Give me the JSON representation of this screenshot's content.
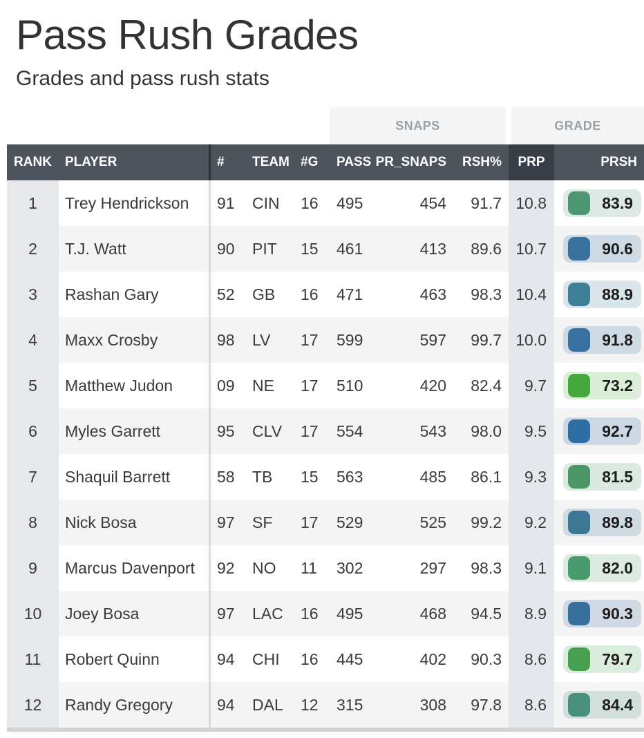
{
  "header": {
    "title": "Pass Rush Grades",
    "subtitle": "Grades and pass rush stats"
  },
  "table": {
    "group_headers": {
      "snaps": "SNAPS",
      "grade": "GRADE"
    },
    "columns": [
      "RANK",
      "PLAYER",
      "#",
      "TEAM",
      "#G",
      "PASS",
      "PR_SNAPS",
      "RSH%",
      "PRP",
      "PRSH"
    ],
    "sorted_column": "PRP",
    "colors": {
      "header_bg": "#4d545c",
      "header_sorted_bg": "#383e45",
      "header_text": "#ffffff",
      "group_label": "#9ba1a8",
      "group_bg": "#f4f4f5",
      "rank_col_bg": "#e6e8eb",
      "prp_col_bg": "#e4e7eb",
      "stripe_bg": "#f4f4f5",
      "divider_header": "#2b2f34",
      "divider_body": "#d9dadb",
      "bottom_bar": "#d2d3d5"
    },
    "rows": [
      {
        "rank": "1",
        "player": "Trey Hendrickson",
        "jersey": "91",
        "team": "CIN",
        "games": "16",
        "pass": "495",
        "pr_snaps": "454",
        "rsh_pct": "91.7",
        "prp": "10.8",
        "prsh": "83.9",
        "grade_color": "#4e9674"
      },
      {
        "rank": "2",
        "player": "T.J. Watt",
        "jersey": "90",
        "team": "PIT",
        "games": "15",
        "pass": "461",
        "pr_snaps": "413",
        "rsh_pct": "89.6",
        "prp": "10.7",
        "prsh": "90.6",
        "grade_color": "#38719c"
      },
      {
        "rank": "3",
        "player": "Rashan Gary",
        "jersey": "52",
        "team": "GB",
        "games": "16",
        "pass": "471",
        "pr_snaps": "463",
        "rsh_pct": "98.3",
        "prp": "10.4",
        "prsh": "88.9",
        "grade_color": "#3f7e97"
      },
      {
        "rank": "4",
        "player": "Maxx Crosby",
        "jersey": "98",
        "team": "LV",
        "games": "17",
        "pass": "599",
        "pr_snaps": "597",
        "rsh_pct": "99.7",
        "prp": "10.0",
        "prsh": "91.8",
        "grade_color": "#38719f"
      },
      {
        "rank": "5",
        "player": "Matthew Judon",
        "jersey": "09",
        "team": "NE",
        "games": "17",
        "pass": "510",
        "pr_snaps": "420",
        "rsh_pct": "82.4",
        "prp": "9.7",
        "prsh": "73.2",
        "grade_color": "#44a83e"
      },
      {
        "rank": "6",
        "player": "Myles Garrett",
        "jersey": "95",
        "team": "CLV",
        "games": "17",
        "pass": "554",
        "pr_snaps": "543",
        "rsh_pct": "98.0",
        "prp": "9.5",
        "prsh": "92.7",
        "grade_color": "#2f6da5"
      },
      {
        "rank": "7",
        "player": "Shaquil Barrett",
        "jersey": "58",
        "team": "TB",
        "games": "15",
        "pass": "563",
        "pr_snaps": "485",
        "rsh_pct": "86.1",
        "prp": "9.3",
        "prsh": "81.5",
        "grade_color": "#4b9566"
      },
      {
        "rank": "8",
        "player": "Nick Bosa",
        "jersey": "97",
        "team": "SF",
        "games": "17",
        "pass": "529",
        "pr_snaps": "525",
        "rsh_pct": "99.2",
        "prp": "9.2",
        "prsh": "89.8",
        "grade_color": "#3d7795"
      },
      {
        "rank": "9",
        "player": "Marcus Davenport",
        "jersey": "92",
        "team": "NO",
        "games": "11",
        "pass": "302",
        "pr_snaps": "297",
        "rsh_pct": "98.3",
        "prp": "9.1",
        "prsh": "82.0",
        "grade_color": "#499a6d"
      },
      {
        "rank": "10",
        "player": "Joey Bosa",
        "jersey": "97",
        "team": "LAC",
        "games": "16",
        "pass": "495",
        "pr_snaps": "468",
        "rsh_pct": "94.5",
        "prp": "8.9",
        "prsh": "90.3",
        "grade_color": "#36709b"
      },
      {
        "rank": "11",
        "player": "Robert Quinn",
        "jersey": "94",
        "team": "CHI",
        "games": "16",
        "pass": "445",
        "pr_snaps": "402",
        "rsh_pct": "90.3",
        "prp": "8.6",
        "prsh": "79.7",
        "grade_color": "#46a050"
      },
      {
        "rank": "12",
        "player": "Randy Gregory",
        "jersey": "94",
        "team": "DAL",
        "games": "12",
        "pass": "315",
        "pr_snaps": "308",
        "rsh_pct": "97.8",
        "prp": "8.6",
        "prsh": "84.4",
        "grade_color": "#4b8f7d"
      }
    ]
  }
}
